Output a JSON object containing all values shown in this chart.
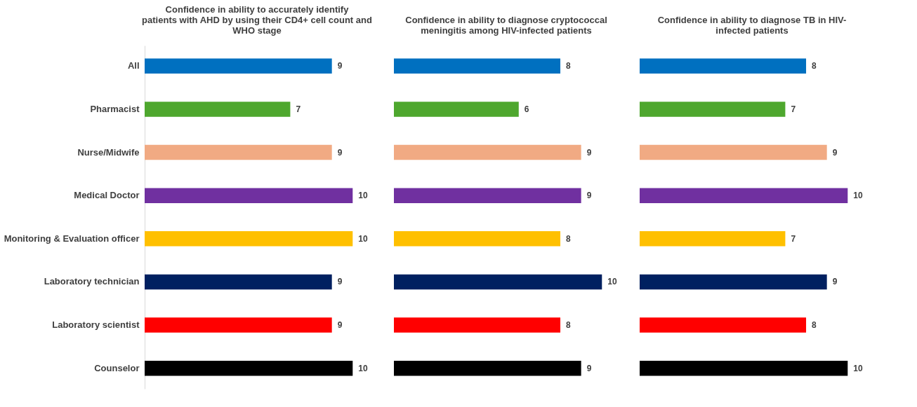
{
  "chart_data": [
    {
      "type": "bar",
      "orientation": "horizontal",
      "title": "Confidence in ability to accurately identify patients with AHD by using their CD4+ cell count and WHO stage",
      "categories": [
        "All",
        "Pharmacist",
        "Nurse/Midwife",
        "Medical Doctor",
        "Monitoring & Evaluation officer",
        "Laboratory technician",
        "Laboratory scientist",
        "Counselor"
      ],
      "values": [
        9,
        7,
        9,
        10,
        10,
        9,
        9,
        10
      ],
      "colors": [
        "#0070c0",
        "#4ea72e",
        "#f1aa83",
        "#7030a0",
        "#ffc000",
        "#002060",
        "#ff0000",
        "#000000"
      ],
      "data_labels": true,
      "tick_labels": "y"
    },
    {
      "type": "bar",
      "orientation": "horizontal",
      "title": "Confidence in ability to  diagnose cryptococcal meningitis among HIV-infected patients",
      "categories": [
        null,
        null,
        null,
        null,
        null,
        null,
        null,
        null
      ],
      "values": [
        8,
        6,
        9,
        9,
        8,
        10,
        8,
        9
      ],
      "colors": [
        "#0070c0",
        "#4ea72e",
        "#f1aa83",
        "#7030a0",
        "#ffc000",
        "#002060",
        "#ff0000",
        "#000000"
      ],
      "data_labels": true,
      "tick_labels": false
    },
    {
      "type": "bar",
      "orientation": "horizontal",
      "title": "Confidence in ability to  diagnose TB in HIV-infected patients",
      "categories": [
        null,
        null,
        null,
        null,
        null,
        null,
        null,
        null
      ],
      "values": [
        8,
        7,
        9,
        10,
        7,
        9,
        8,
        10
      ],
      "colors": [
        "#0070c0",
        "#4ea72e",
        "#f1aa83",
        "#7030a0",
        "#ffc000",
        "#002060",
        "#ff0000",
        "#000000"
      ],
      "data_labels": true,
      "tick_labels": false
    }
  ]
}
